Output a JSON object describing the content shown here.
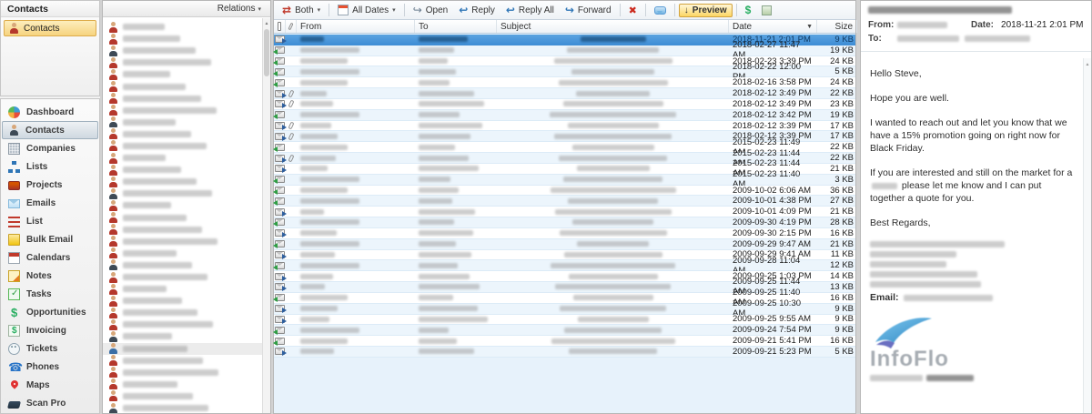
{
  "icons": {
    "caret": "▾",
    "sort_desc": "▼",
    "scroll_up": "▲",
    "preview_arrow": "↓",
    "delete_x": "✖",
    "reply": "↩",
    "reply_all": "↩",
    "forward": "↪",
    "open": "↪",
    "both_sync": "⇄",
    "dollar": "$"
  },
  "sidebar": {
    "panel_title": "Contacts",
    "shortcut_label": "Contacts",
    "nav": [
      {
        "id": "dashboard",
        "label": "Dashboard",
        "selected": false
      },
      {
        "id": "contacts",
        "label": "Contacts",
        "selected": true
      },
      {
        "id": "companies",
        "label": "Companies",
        "selected": false
      },
      {
        "id": "lists",
        "label": "Lists",
        "selected": false
      },
      {
        "id": "projects",
        "label": "Projects",
        "selected": false
      },
      {
        "id": "emails",
        "label": "Emails",
        "selected": false
      },
      {
        "id": "list",
        "label": "List",
        "selected": false
      },
      {
        "id": "bulk-email",
        "label": "Bulk Email",
        "selected": false
      },
      {
        "id": "calendars",
        "label": "Calendars",
        "selected": false
      },
      {
        "id": "notes",
        "label": "Notes",
        "selected": false
      },
      {
        "id": "tasks",
        "label": "Tasks",
        "selected": false
      },
      {
        "id": "opportunities",
        "label": "Opportunities",
        "selected": false
      },
      {
        "id": "invoicing",
        "label": "Invoicing",
        "selected": false
      },
      {
        "id": "tickets",
        "label": "Tickets",
        "selected": false
      },
      {
        "id": "phones",
        "label": "Phones",
        "selected": false
      },
      {
        "id": "maps",
        "label": "Maps",
        "selected": false
      },
      {
        "id": "scan-pro",
        "label": "Scan Pro",
        "selected": false
      }
    ]
  },
  "contacts": {
    "header_label": "Relations",
    "visible_rows": 33,
    "selected_row": 27
  },
  "email_list": {
    "toolbar": {
      "both": "Both",
      "all_dates": "All Dates",
      "open": "Open",
      "reply": "Reply",
      "reply_all": "Reply All",
      "forward": "Forward",
      "preview": "Preview",
      "dollar": "$"
    },
    "columns": {
      "from": "From",
      "to": "To",
      "subject": "Subject",
      "date": "Date",
      "size": "Size"
    },
    "sorted_by": "Date",
    "rows": [
      {
        "date": "2018-11-21 2:01 PM",
        "size": "9 KB",
        "dir": "out",
        "clip": false,
        "selected": true
      },
      {
        "date": "2018-02-27 11:47 AM",
        "size": "19 KB",
        "dir": "in",
        "clip": false,
        "selected": false
      },
      {
        "date": "2018-02-23 3:39 PM",
        "size": "24 KB",
        "dir": "in",
        "clip": false,
        "selected": false
      },
      {
        "date": "2018-02-22 12:00 PM",
        "size": "5 KB",
        "dir": "in",
        "clip": false,
        "selected": false
      },
      {
        "date": "2018-02-16 3:58 PM",
        "size": "24 KB",
        "dir": "in",
        "clip": false,
        "selected": false
      },
      {
        "date": "2018-02-12 3:49 PM",
        "size": "22 KB",
        "dir": "out",
        "clip": true,
        "selected": false
      },
      {
        "date": "2018-02-12 3:49 PM",
        "size": "23 KB",
        "dir": "out",
        "clip": true,
        "selected": false
      },
      {
        "date": "2018-02-12 3:42 PM",
        "size": "19 KB",
        "dir": "in",
        "clip": false,
        "selected": false
      },
      {
        "date": "2018-02-12 3:39 PM",
        "size": "17 KB",
        "dir": "out",
        "clip": true,
        "selected": false
      },
      {
        "date": "2018-02-12 3:39 PM",
        "size": "17 KB",
        "dir": "out",
        "clip": true,
        "selected": false
      },
      {
        "date": "2015-02-23 11:49 AM",
        "size": "22 KB",
        "dir": "in",
        "clip": false,
        "selected": false
      },
      {
        "date": "2015-02-23 11:44 AM",
        "size": "22 KB",
        "dir": "out",
        "clip": true,
        "selected": false
      },
      {
        "date": "2015-02-23 11:44 AM",
        "size": "21 KB",
        "dir": "out",
        "clip": false,
        "selected": false
      },
      {
        "date": "2015-02-23 11:40 AM",
        "size": "3 KB",
        "dir": "in",
        "clip": false,
        "selected": false
      },
      {
        "date": "2009-10-02 6:06 AM",
        "size": "36 KB",
        "dir": "in",
        "clip": false,
        "selected": false
      },
      {
        "date": "2009-10-01 4:38 PM",
        "size": "27 KB",
        "dir": "in",
        "clip": false,
        "selected": false
      },
      {
        "date": "2009-10-01 4:09 PM",
        "size": "21 KB",
        "dir": "out",
        "clip": false,
        "selected": false
      },
      {
        "date": "2009-09-30 4:19 PM",
        "size": "28 KB",
        "dir": "in",
        "clip": false,
        "selected": false
      },
      {
        "date": "2009-09-30 2:15 PM",
        "size": "16 KB",
        "dir": "out",
        "clip": false,
        "selected": false
      },
      {
        "date": "2009-09-29 9:47 AM",
        "size": "21 KB",
        "dir": "in",
        "clip": false,
        "selected": false
      },
      {
        "date": "2009-09-29 9:41 AM",
        "size": "11 KB",
        "dir": "out",
        "clip": false,
        "selected": false
      },
      {
        "date": "2009-09-28 11:04 AM",
        "size": "12 KB",
        "dir": "in",
        "clip": false,
        "selected": false
      },
      {
        "date": "2009-09-25 1:03 PM",
        "size": "14 KB",
        "dir": "out",
        "clip": false,
        "selected": false
      },
      {
        "date": "2009-09-25 11:44 AM",
        "size": "13 KB",
        "dir": "out",
        "clip": false,
        "selected": false
      },
      {
        "date": "2009-09-25 11:40 AM",
        "size": "16 KB",
        "dir": "in",
        "clip": false,
        "selected": false
      },
      {
        "date": "2009-09-25 10:30 AM",
        "size": "9 KB",
        "dir": "out",
        "clip": false,
        "selected": false
      },
      {
        "date": "2009-09-25 9:55 AM",
        "size": "9 KB",
        "dir": "out",
        "clip": false,
        "selected": false
      },
      {
        "date": "2009-09-24 7:54 PM",
        "size": "9 KB",
        "dir": "in",
        "clip": false,
        "selected": false
      },
      {
        "date": "2009-09-21 5:41 PM",
        "size": "16 KB",
        "dir": "in",
        "clip": false,
        "selected": false
      },
      {
        "date": "2009-09-21 5:23 PM",
        "size": "5 KB",
        "dir": "out",
        "clip": false,
        "selected": false
      }
    ]
  },
  "preview": {
    "from_label": "From:",
    "to_label": "To:",
    "date_label": "Date:",
    "date_value": "2018-11-21 2:01 PM",
    "body": [
      {
        "text": "Hello Steve,"
      },
      {
        "text": "Hope you are well."
      },
      {
        "text": "I wanted to reach out and let you know that we have a 15% promotion going on right now for Black Friday."
      },
      {
        "text": "If you are interested and still on the market for a",
        "redacted_after": true,
        "text_after": "please let me know and I can put together a quote for you."
      },
      {
        "text": "Best Regards,"
      }
    ],
    "signature": {
      "redacted_lines": 5,
      "email_label": "Email:"
    },
    "logo_text": "InfoFlo"
  }
}
